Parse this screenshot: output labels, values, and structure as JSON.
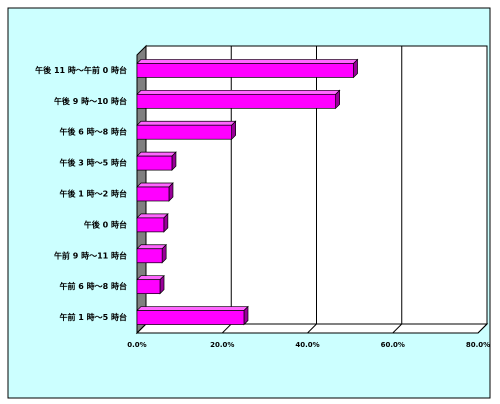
{
  "chart_data": {
    "type": "bar",
    "orientation": "horizontal",
    "categories": [
      "午後 11 時～午前 0 時台",
      "午後 9 時～10 時台",
      "午後 6 時～8 時台",
      "午後 3 時～5 時台",
      "午後 1 時～2 時台",
      "午後 0 時台",
      "午前 9 時～11 時台",
      "午前 6 時～8 時台",
      "午前 1 時～5 時台"
    ],
    "values": [
      50.8,
      46.6,
      22.2,
      8.2,
      7.5,
      6.3,
      5.9,
      5.4,
      25.1
    ],
    "color": "#ff00ff",
    "xlim": [
      0,
      80
    ],
    "xticks": [
      {
        "value": 0,
        "label": "0.0%"
      },
      {
        "value": 20,
        "label": "20.0%"
      },
      {
        "value": 40,
        "label": "40.0%"
      },
      {
        "value": 60,
        "label": "60.0%"
      },
      {
        "value": 80,
        "label": "80.0%"
      }
    ],
    "grid": true
  }
}
